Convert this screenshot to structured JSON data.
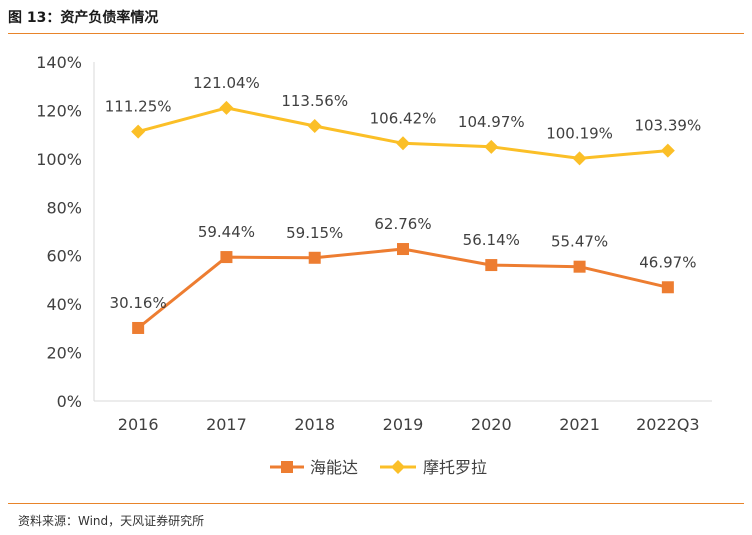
{
  "figure": {
    "title": "图 13：资产负债率情况",
    "source": "资料来源：Wind，天风证券研究所"
  },
  "colors": {
    "accent_rule": "#e8842a",
    "series_haineng": "#ed7d31",
    "series_moto": "#fbbf27",
    "axis_text": "#404040",
    "gridline": "#d9d9d9"
  },
  "chart_data": {
    "type": "line",
    "title": "资产负债率情况",
    "xlabel": "",
    "ylabel": "",
    "categories": [
      "2016",
      "2017",
      "2018",
      "2019",
      "2020",
      "2021",
      "2022Q3"
    ],
    "ylim": [
      0,
      140
    ],
    "yticks": [
      0,
      20,
      40,
      60,
      80,
      100,
      120,
      140
    ],
    "ytick_labels": [
      "0%",
      "20%",
      "40%",
      "60%",
      "80%",
      "100%",
      "120%",
      "140%"
    ],
    "grid": false,
    "legend_position": "bottom",
    "series": [
      {
        "name": "海能达",
        "marker": "square",
        "values": [
          30.16,
          59.44,
          59.15,
          62.76,
          56.14,
          55.47,
          46.97
        ],
        "labels": [
          "30.16%",
          "59.44%",
          "59.15%",
          "62.76%",
          "56.14%",
          "55.47%",
          "46.97%"
        ]
      },
      {
        "name": "摩托罗拉",
        "marker": "diamond",
        "values": [
          111.25,
          121.04,
          113.56,
          106.42,
          104.97,
          100.19,
          103.39
        ],
        "labels": [
          "111.25%",
          "121.04%",
          "113.56%",
          "106.42%",
          "104.97%",
          "100.19%",
          "103.39%"
        ]
      }
    ]
  }
}
